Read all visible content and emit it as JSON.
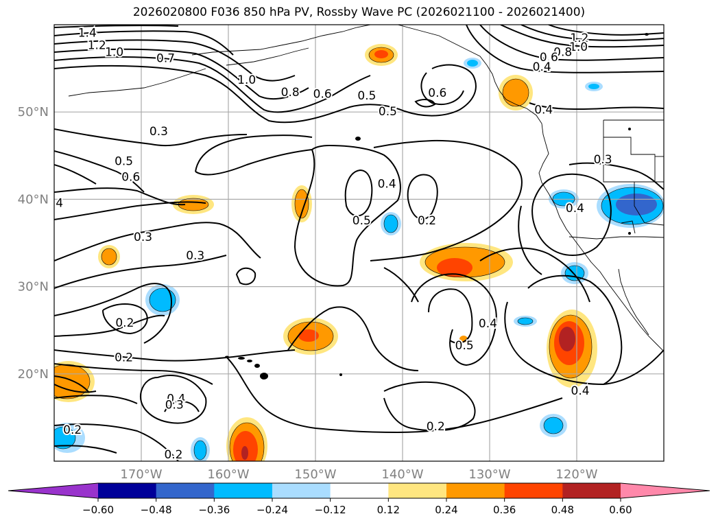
{
  "title": "2026020800 F036 850 hPa PV, Rossby Wave PC (2026021100 - 2026021400)",
  "map": {
    "lon_range": [
      -180,
      -110
    ],
    "lat_range": [
      10,
      60
    ],
    "lat_ticks": [
      {
        "lat": 50,
        "label": "50°N"
      },
      {
        "lat": 40,
        "label": "40°N"
      },
      {
        "lat": 30,
        "label": "30°N"
      },
      {
        "lat": 20,
        "label": "20°N"
      }
    ],
    "lon_ticks": [
      {
        "lon": -170,
        "label": "170°W"
      },
      {
        "lon": -160,
        "label": "160°W"
      },
      {
        "lon": -150,
        "label": "150°W"
      },
      {
        "lon": -140,
        "label": "140°W"
      },
      {
        "lon": -130,
        "label": "130°W"
      },
      {
        "lon": -120,
        "label": "120°W"
      }
    ],
    "grid": true,
    "gridline_color": "#aaaaaa",
    "tick_label_color": "#808080",
    "contour_labels": [
      {
        "text": "1.4",
        "lon": -176.2,
        "lat": 59.1
      },
      {
        "text": "1.2",
        "lon": -175.1,
        "lat": 57.7
      },
      {
        "text": "1.0",
        "lon": -173.1,
        "lat": 56.9
      },
      {
        "text": "0.7",
        "lon": -167.2,
        "lat": 56.2
      },
      {
        "text": "1.0",
        "lon": -157.9,
        "lat": 53.7
      },
      {
        "text": "0.8",
        "lon": -152.9,
        "lat": 52.3
      },
      {
        "text": "0.6",
        "lon": -149.2,
        "lat": 52.1
      },
      {
        "text": "0.5",
        "lon": -144.1,
        "lat": 51.9
      },
      {
        "text": "0.5",
        "lon": -141.7,
        "lat": 50.1
      },
      {
        "text": "0.6",
        "lon": -136.0,
        "lat": 52.2
      },
      {
        "text": "1.2",
        "lon": -119.7,
        "lat": 58.5
      },
      {
        "text": "1.0",
        "lon": -119.8,
        "lat": 57.5
      },
      {
        "text": "0.8",
        "lon": -121.6,
        "lat": 56.9
      },
      {
        "text": "0.6",
        "lon": -123.2,
        "lat": 56.3
      },
      {
        "text": "0.4",
        "lon": -124.0,
        "lat": 55.2
      },
      {
        "text": "0.4",
        "lon": -123.8,
        "lat": 50.3
      },
      {
        "text": "0.3",
        "lon": -168.0,
        "lat": 47.8
      },
      {
        "text": "0.5",
        "lon": -172.0,
        "lat": 44.4
      },
      {
        "text": "0.6",
        "lon": -171.2,
        "lat": 42.6
      },
      {
        "text": "4",
        "lon": -179.4,
        "lat": 39.6
      },
      {
        "text": "0.3",
        "lon": -169.8,
        "lat": 35.7
      },
      {
        "text": "0.3",
        "lon": -163.8,
        "lat": 33.6
      },
      {
        "text": "0.5",
        "lon": -144.7,
        "lat": 37.6
      },
      {
        "text": "0.4",
        "lon": -141.8,
        "lat": 41.8
      },
      {
        "text": "0.2",
        "lon": -137.2,
        "lat": 37.6
      },
      {
        "text": "0.3",
        "lon": -117.0,
        "lat": 44.6
      },
      {
        "text": "0.4",
        "lon": -120.2,
        "lat": 39.0
      },
      {
        "text": "0.2",
        "lon": -171.9,
        "lat": 25.9
      },
      {
        "text": "0.2",
        "lon": -172.0,
        "lat": 21.9
      },
      {
        "text": "0.4",
        "lon": -166.0,
        "lat": 17.2
      },
      {
        "text": "0.3",
        "lon": -166.2,
        "lat": 16.5
      },
      {
        "text": "0.2",
        "lon": -177.9,
        "lat": 13.6
      },
      {
        "text": "0.2",
        "lon": -166.3,
        "lat": 10.8
      },
      {
        "text": "0.4",
        "lon": -130.2,
        "lat": 25.8
      },
      {
        "text": "0.5",
        "lon": -132.9,
        "lat": 23.3
      },
      {
        "text": "0.2",
        "lon": -136.2,
        "lat": 14.0
      },
      {
        "text": "0.4",
        "lon": -119.6,
        "lat": 18.1
      }
    ]
  },
  "colorbar": {
    "ticks": [
      "−0.60",
      "−0.48",
      "−0.36",
      "−0.24",
      "−0.12",
      "0.12",
      "0.24",
      "0.36",
      "0.48",
      "0.60"
    ],
    "colors": [
      "#9933cc",
      "#000099",
      "#3366cc",
      "#00bbff",
      "#aaddff",
      "#ffffff",
      "#ffe680",
      "#ff9900",
      "#ff4400",
      "#b22222",
      "#ff88aa"
    ]
  }
}
